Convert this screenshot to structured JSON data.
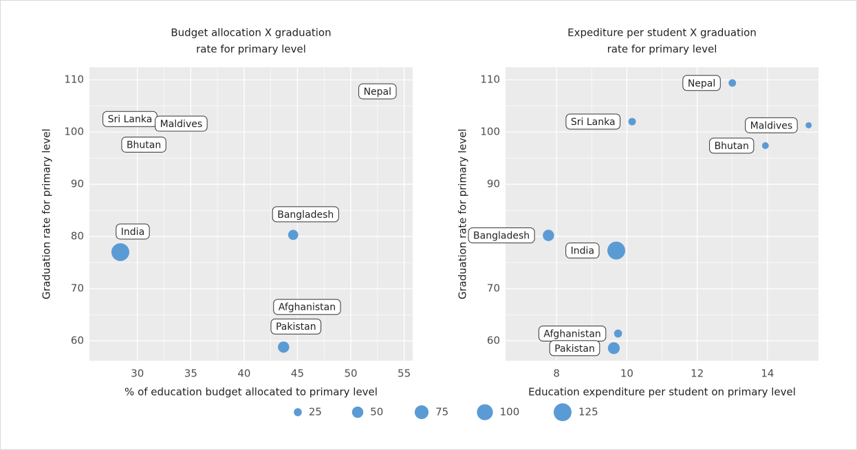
{
  "chart_data": [
    {
      "type": "scatter",
      "title": [
        "Budget allocation X graduation",
        "rate for primary level"
      ],
      "x_label": "% of education budget allocated to primary level",
      "y_label": "Graduation rate for primary level",
      "xlim": [
        25.5,
        55.8
      ],
      "ylim": [
        56.2,
        112.4
      ],
      "xticks": [
        30,
        35,
        40,
        45,
        50,
        55
      ],
      "yticks": [
        60,
        70,
        80,
        90,
        100,
        110
      ],
      "grid": true,
      "color": "#5b9bd5",
      "labels": [
        "Nepal",
        "Sri Lanka",
        "Maldives",
        "Bhutan",
        "India",
        "Bangladesh",
        "Afghanistan",
        "Pakistan"
      ],
      "x": [
        52.5,
        29.3,
        34.1,
        30.6,
        28.4,
        44.6,
        45.9,
        43.7
      ],
      "y": [
        107.8,
        102.5,
        101.6,
        97.6,
        77.0,
        80.3,
        66.5,
        58.8
      ],
      "sizes": [
        null,
        null,
        null,
        null,
        125,
        40,
        null,
        50
      ]
    },
    {
      "type": "scatter",
      "title": [
        "Expediture per student X graduation",
        "rate for primary level"
      ],
      "x_label": "Education expenditure per student on primary level",
      "y_label": "Graduation rate for primary level",
      "xlim": [
        6.55,
        15.45
      ],
      "ylim": [
        56.2,
        112.4
      ],
      "xticks": [
        8,
        10,
        12,
        14
      ],
      "yticks": [
        60,
        70,
        80,
        90,
        100,
        110
      ],
      "grid": true,
      "color": "#5b9bd5",
      "labels": [
        "Nepal",
        "Sri Lanka",
        "Maldives",
        "Bhutan",
        "Bangladesh",
        "India",
        "Afghanistan",
        "Pakistan"
      ],
      "x": [
        13.0,
        10.15,
        15.17,
        13.94,
        7.77,
        9.7,
        9.75,
        9.63
      ],
      "y": [
        109.4,
        102.0,
        101.3,
        97.4,
        80.2,
        77.3,
        61.4,
        58.6
      ],
      "sizes": [
        22,
        22,
        15,
        18,
        50,
        125,
        25,
        55
      ]
    }
  ],
  "size_legend": {
    "values": [
      25,
      50,
      75,
      100,
      125
    ],
    "labels": [
      "25",
      "50",
      "75",
      "100",
      "125"
    ]
  }
}
